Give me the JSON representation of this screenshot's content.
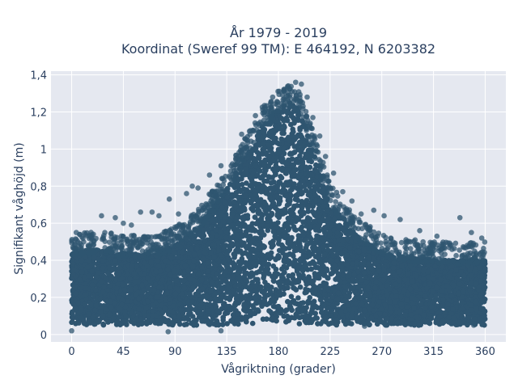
{
  "chart_data": {
    "type": "scatter",
    "title": [
      "År 1979 - 2019",
      "Koordinat (Sweref 99 TM): E 464192, N 6203382"
    ],
    "xlabel": "Vågriktning (grader)",
    "ylabel": "Signifikant våghöjd (m)",
    "xlim": [
      -18,
      378
    ],
    "ylim": [
      -0.04,
      1.42
    ],
    "x_ticks": [
      0,
      45,
      90,
      135,
      180,
      225,
      270,
      315,
      360
    ],
    "x_tick_labels": [
      "0",
      "45",
      "90",
      "135",
      "180",
      "225",
      "270",
      "315",
      "360"
    ],
    "y_ticks": [
      0,
      0.2,
      0.4,
      0.6,
      0.8,
      1.0,
      1.2,
      1.4
    ],
    "y_tick_labels": [
      "0",
      "0,2",
      "0,4",
      "0,6",
      "0,8",
      "1",
      "1,2",
      "1,4"
    ],
    "grid": true,
    "marker_color": "#2f5570",
    "plot_background": "#e5e8f0",
    "grid_color": "#ffffff",
    "density_envelope": {
      "direction": [
        0,
        20,
        45,
        70,
        90,
        110,
        135,
        150,
        165,
        180,
        190,
        200,
        210,
        225,
        245,
        270,
        300,
        330,
        360
      ],
      "dense_max_height": [
        0.44,
        0.46,
        0.44,
        0.43,
        0.48,
        0.58,
        0.78,
        0.95,
        1.12,
        1.22,
        1.25,
        1.2,
        1.0,
        0.72,
        0.55,
        0.44,
        0.41,
        0.4,
        0.4
      ],
      "dense_min_height": 0.05
    },
    "outliers": [
      {
        "x": 4,
        "y": 0.55
      },
      {
        "x": 12,
        "y": 0.54
      },
      {
        "x": 26,
        "y": 0.64
      },
      {
        "x": 38,
        "y": 0.63
      },
      {
        "x": 45,
        "y": 0.6
      },
      {
        "x": 52,
        "y": 0.59
      },
      {
        "x": 60,
        "y": 0.66
      },
      {
        "x": 70,
        "y": 0.66
      },
      {
        "x": 76,
        "y": 0.64
      },
      {
        "x": 85,
        "y": 0.73
      },
      {
        "x": 93,
        "y": 0.65
      },
      {
        "x": 100,
        "y": 0.76
      },
      {
        "x": 105,
        "y": 0.8
      },
      {
        "x": 110,
        "y": 0.79
      },
      {
        "x": 120,
        "y": 0.86
      },
      {
        "x": 130,
        "y": 0.91
      },
      {
        "x": 148,
        "y": 1.08
      },
      {
        "x": 160,
        "y": 1.18
      },
      {
        "x": 175,
        "y": 1.28
      },
      {
        "x": 188,
        "y": 1.33
      },
      {
        "x": 195,
        "y": 1.36
      },
      {
        "x": 200,
        "y": 1.35
      },
      {
        "x": 205,
        "y": 1.28
      },
      {
        "x": 210,
        "y": 1.17
      },
      {
        "x": 216,
        "y": 1.07
      },
      {
        "x": 221,
        "y": 0.96
      },
      {
        "x": 228,
        "y": 0.87
      },
      {
        "x": 236,
        "y": 0.77
      },
      {
        "x": 244,
        "y": 0.72
      },
      {
        "x": 252,
        "y": 0.65
      },
      {
        "x": 263,
        "y": 0.67
      },
      {
        "x": 272,
        "y": 0.64
      },
      {
        "x": 286,
        "y": 0.62
      },
      {
        "x": 303,
        "y": 0.56
      },
      {
        "x": 318,
        "y": 0.53
      },
      {
        "x": 338,
        "y": 0.63
      },
      {
        "x": 348,
        "y": 0.55
      },
      {
        "x": 357,
        "y": 0.52
      },
      {
        "x": 0,
        "y": 0.02
      },
      {
        "x": 84,
        "y": 0.015
      },
      {
        "x": 130,
        "y": 0.02
      },
      {
        "x": 255,
        "y": 0.045
      },
      {
        "x": 350,
        "y": 0.05
      }
    ]
  }
}
